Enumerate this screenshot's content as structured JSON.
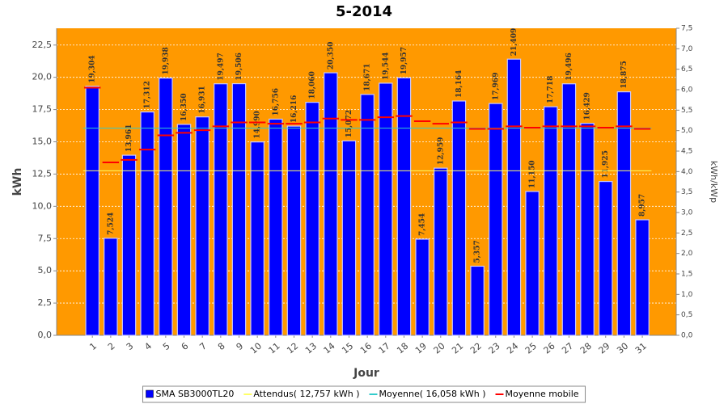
{
  "chart_data": {
    "type": "bar",
    "title": "5-2014",
    "x_label": "Jour",
    "y_label": "kWh",
    "y2_label": "kWh/kWp",
    "categories": [
      "1",
      "2",
      "3",
      "4",
      "5",
      "6",
      "7",
      "8",
      "9",
      "10",
      "11",
      "12",
      "13",
      "14",
      "15",
      "16",
      "17",
      "18",
      "19",
      "20",
      "21",
      "22",
      "23",
      "24",
      "25",
      "26",
      "27",
      "28",
      "29",
      "30",
      "31"
    ],
    "series": [
      {
        "name": "SMA SB3000TL20",
        "color": "#0000ff",
        "values": [
          19.304,
          7.524,
          13.961,
          17.312,
          19.938,
          16.35,
          16.931,
          19.497,
          19.506,
          14.99,
          16.756,
          16.216,
          18.06,
          20.35,
          15.072,
          18.671,
          19.544,
          19.957,
          7.454,
          12.959,
          18.164,
          5.357,
          17.969,
          21.409,
          11.15,
          17.718,
          19.496,
          16.429,
          11.925,
          18.875,
          8.957
        ],
        "value_labels": [
          "19,304",
          "7,524",
          "13,961",
          "17,312",
          "19,938",
          "16,350",
          "16,931",
          "19,497",
          "19,506",
          "14,990",
          "16,756",
          "16,216",
          "18,060",
          "20,350",
          "15,072",
          "18,671",
          "19,544",
          "19,957",
          "7,454",
          "12,959",
          "18,164",
          "5,357",
          "17,969",
          "21,409",
          "11,150",
          "17,718",
          "19,496",
          "16,429",
          "11,925",
          "18,875",
          "8,957"
        ]
      },
      {
        "name": "Attendus( 12,757 kWh )",
        "color": "#ffff66",
        "value": 12.757
      },
      {
        "name": "Moyenne( 16,058 kWh )",
        "color": "#33cccc",
        "value": 16.058
      },
      {
        "name": "Moyenne mobile",
        "color": "#ff0000",
        "values": [
          19.2,
          13.4,
          13.6,
          14.4,
          15.5,
          15.7,
          15.9,
          16.2,
          16.5,
          16.5,
          16.4,
          16.4,
          16.5,
          16.8,
          16.7,
          16.7,
          16.9,
          17.0,
          16.6,
          16.4,
          16.5,
          16.0,
          16.0,
          16.2,
          16.1,
          16.2,
          16.2,
          16.2,
          16.1,
          16.2,
          16.0
        ]
      }
    ],
    "ylim": [
      0,
      23.8
    ],
    "yticks": [
      {
        "value": 0,
        "label": "0,0"
      },
      {
        "value": 2.5,
        "label": "2,5"
      },
      {
        "value": 5,
        "label": "5,0"
      },
      {
        "value": 7.5,
        "label": "7,5"
      },
      {
        "value": 10,
        "label": "10,0"
      },
      {
        "value": 12.5,
        "label": "12,5"
      },
      {
        "value": 15,
        "label": "15,0"
      },
      {
        "value": 17.5,
        "label": "17,5"
      },
      {
        "value": 20,
        "label": "20,0"
      },
      {
        "value": 22.5,
        "label": "22,5"
      }
    ],
    "y2lim": [
      0,
      7.5
    ],
    "y2ticks": [
      {
        "value": 0,
        "label": "0,0"
      },
      {
        "value": 0.5,
        "label": "0,5"
      },
      {
        "value": 1,
        "label": "1,0"
      },
      {
        "value": 1.5,
        "label": "1,5"
      },
      {
        "value": 2,
        "label": "2,0"
      },
      {
        "value": 2.5,
        "label": "2,5"
      },
      {
        "value": 3,
        "label": "3,0"
      },
      {
        "value": 3.5,
        "label": "3,5"
      },
      {
        "value": 4,
        "label": "4,0"
      },
      {
        "value": 4.5,
        "label": "4,5"
      },
      {
        "value": 5,
        "label": "5,0"
      },
      {
        "value": 5.5,
        "label": "5,5"
      },
      {
        "value": 6,
        "label": "6,0"
      },
      {
        "value": 6.5,
        "label": "6,5"
      },
      {
        "value": 7,
        "label": "7,0"
      },
      {
        "value": 7.5,
        "label": "7,5"
      }
    ],
    "grid": true,
    "background": "#ff9900"
  }
}
